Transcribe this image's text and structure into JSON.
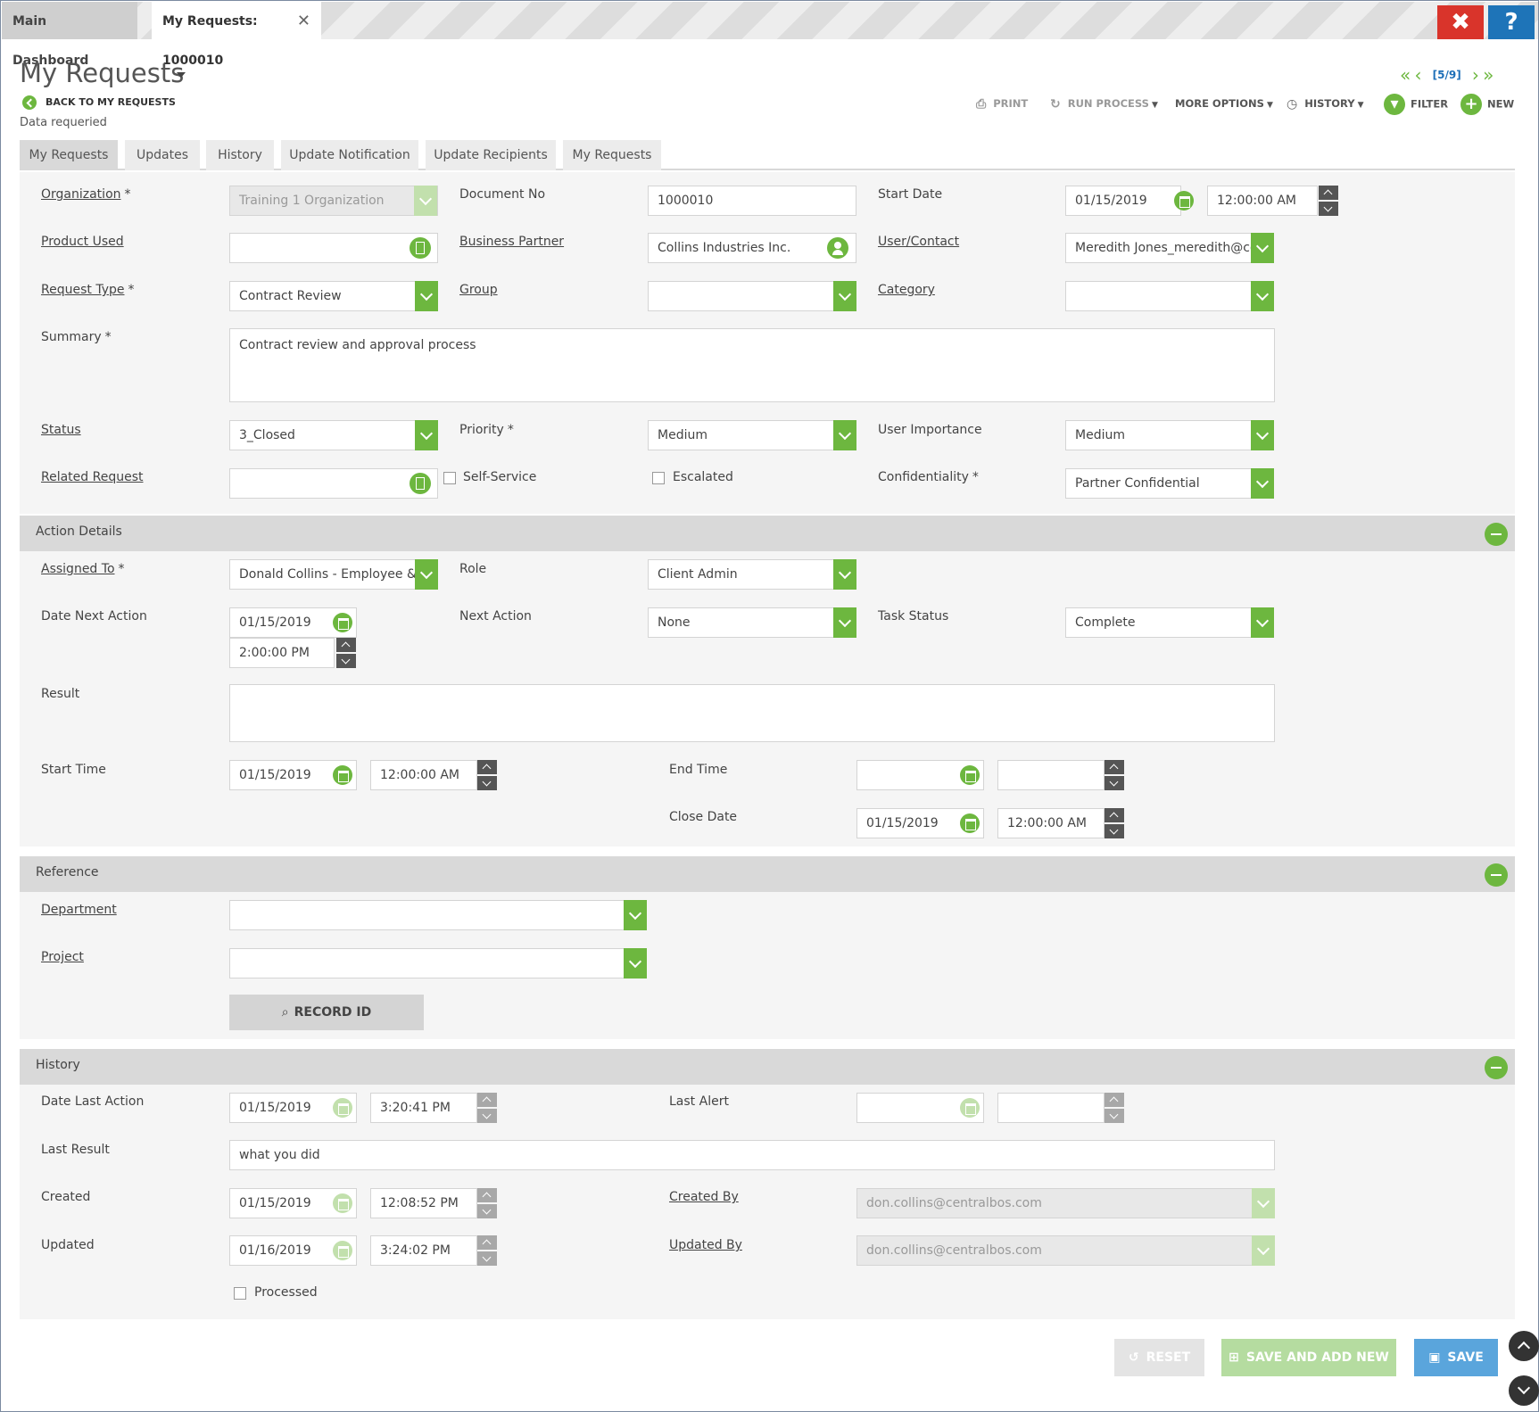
{
  "window_tabs": {
    "dashboard": "Main Dashboard",
    "current": "My Requests: 1000010",
    "close_glyph": "✕"
  },
  "top_buttons": {
    "close": "✖",
    "help": "?"
  },
  "header": {
    "title": "My Requests",
    "back": "BACK TO MY REQUESTS",
    "notice": "Data requeried"
  },
  "pager": {
    "first": "«",
    "prev": "‹",
    "count": "[5/9]",
    "next": "›",
    "last": "»"
  },
  "toolbar": {
    "print": "PRINT",
    "run_process": "RUN PROCESS",
    "more_options": "MORE OPTIONS",
    "history": "HISTORY",
    "filter": "FILTER",
    "new": "NEW"
  },
  "form_tabs": [
    "My Requests",
    "Updates",
    "History",
    "Update Notification",
    "Update Recipients",
    "My Requests"
  ],
  "fields": {
    "organization": {
      "label": "Organization",
      "value": "Training 1 Organization"
    },
    "document_no": {
      "label": "Document No",
      "value": "1000010"
    },
    "start_date": {
      "label": "Start Date",
      "date": "01/15/2019",
      "time": "12:00:00 AM"
    },
    "product_used": {
      "label": "Product Used",
      "value": ""
    },
    "business_partner": {
      "label": "Business Partner",
      "value": "Collins Industries Inc."
    },
    "user_contact": {
      "label": "User/Contact",
      "value": "Meredith Jones_meredith@co"
    },
    "request_type": {
      "label": "Request Type",
      "value": "Contract Review"
    },
    "group": {
      "label": "Group",
      "value": ""
    },
    "category": {
      "label": "Category",
      "value": ""
    },
    "summary": {
      "label": "Summary",
      "value": "Contract review and approval process"
    },
    "status": {
      "label": "Status",
      "value": "3_Closed"
    },
    "priority": {
      "label": "Priority",
      "value": "Medium"
    },
    "user_importance": {
      "label": "User Importance",
      "value": "Medium"
    },
    "related_request": {
      "label": "Related Request",
      "value": ""
    },
    "self_service": {
      "label": "Self-Service",
      "checked": false
    },
    "escalated": {
      "label": "Escalated",
      "checked": false
    },
    "confidentiality": {
      "label": "Confidentiality",
      "value": "Partner Confidential"
    }
  },
  "action_details": {
    "title": "Action Details",
    "assigned_to": {
      "label": "Assigned To",
      "value": "Donald Collins - Employee & PC"
    },
    "role": {
      "label": "Role",
      "value": "Client Admin"
    },
    "date_next_action": {
      "label": "Date Next Action",
      "date": "01/15/2019",
      "time": "2:00:00 PM"
    },
    "next_action": {
      "label": "Next Action",
      "value": "None"
    },
    "task_status": {
      "label": "Task Status",
      "value": "Complete"
    },
    "result": {
      "label": "Result",
      "value": ""
    },
    "start_time": {
      "label": "Start Time",
      "date": "01/15/2019",
      "time": "12:00:00 AM"
    },
    "end_time": {
      "label": "End Time",
      "date": "",
      "time": ""
    },
    "close_date": {
      "label": "Close Date",
      "date": "01/15/2019",
      "time": "12:00:00 AM"
    }
  },
  "reference": {
    "title": "Reference",
    "department": {
      "label": "Department",
      "value": ""
    },
    "project": {
      "label": "Project",
      "value": ""
    },
    "record_id": "RECORD ID"
  },
  "history": {
    "title": "History",
    "date_last_action": {
      "label": "Date Last Action",
      "date": "01/15/2019",
      "time": "3:20:41 PM"
    },
    "last_alert": {
      "label": "Last Alert",
      "date": "",
      "time": ""
    },
    "last_result": {
      "label": "Last Result",
      "value": "what you did"
    },
    "created": {
      "label": "Created",
      "date": "01/15/2019",
      "time": "12:08:52 PM"
    },
    "created_by": {
      "label": "Created By",
      "value": "don.collins@centralbos.com"
    },
    "updated": {
      "label": "Updated",
      "date": "01/16/2019",
      "time": "3:24:02 PM"
    },
    "updated_by": {
      "label": "Updated By",
      "value": "don.collins@centralbos.com"
    },
    "processed": {
      "label": "Processed",
      "checked": false
    }
  },
  "buttons": {
    "reset": "RESET",
    "save_and_add_new": "SAVE AND ADD NEW",
    "save": "SAVE"
  },
  "required_marker": "*",
  "colors": {
    "accent_green": "#6db73f",
    "close_red": "#d9342b",
    "help_blue": "#1e74b8",
    "save_blue": "#5aa5dc"
  }
}
